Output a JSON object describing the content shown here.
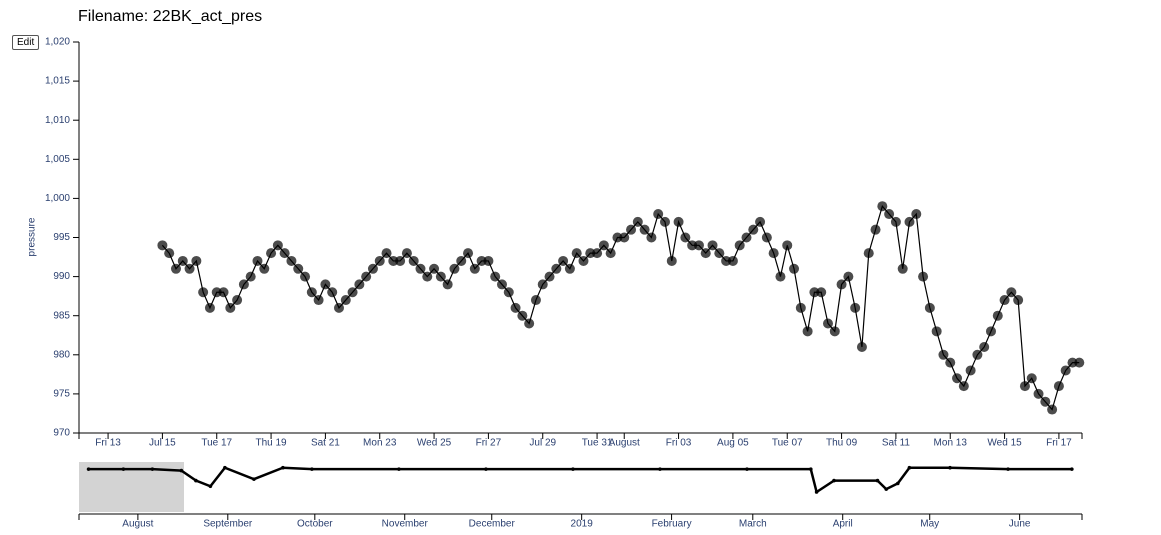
{
  "controls": {
    "edit": "Edit"
  },
  "chart_data": [
    {
      "type": "line",
      "title": "Filename: 22BK_act_pres",
      "y_label": "pressure",
      "markers": true,
      "color": "#000000",
      "xlim": [
        -1.07,
        35.85
      ],
      "ylim": [
        970,
        1020
      ],
      "xticks": [
        {
          "value": 0,
          "label": "Fri 13"
        },
        {
          "value": 2,
          "label": "Jul 15"
        },
        {
          "value": 4,
          "label": "Tue 17"
        },
        {
          "value": 6,
          "label": "Thu 19"
        },
        {
          "value": 8,
          "label": "Sat 21"
        },
        {
          "value": 10,
          "label": "Mon 23"
        },
        {
          "value": 12,
          "label": "Wed 25"
        },
        {
          "value": 14,
          "label": "Fri 27"
        },
        {
          "value": 16,
          "label": "Jul 29"
        },
        {
          "value": 18,
          "label": "Tue 31"
        },
        {
          "value": 19,
          "label": "August"
        },
        {
          "value": 21,
          "label": "Fri 03"
        },
        {
          "value": 23,
          "label": "Aug 05"
        },
        {
          "value": 25,
          "label": "Tue 07"
        },
        {
          "value": 27,
          "label": "Thu 09"
        },
        {
          "value": 29,
          "label": "Sat 11"
        },
        {
          "value": 31,
          "label": "Mon 13"
        },
        {
          "value": 33,
          "label": "Wed 15"
        },
        {
          "value": 35,
          "label": "Fri 17"
        }
      ],
      "yticks": [
        970,
        975,
        980,
        985,
        990,
        995,
        {
          "value": 1000,
          "label": "1,000"
        },
        {
          "value": 1005,
          "label": "1,005"
        },
        {
          "value": 1010,
          "label": "1,010"
        },
        {
          "value": 1015,
          "label": "1,015"
        },
        {
          "value": 1020,
          "label": "1,020"
        }
      ],
      "x": [
        2,
        2.25,
        2.5,
        2.75,
        3,
        3.25,
        3.5,
        3.75,
        4,
        4.25,
        4.5,
        4.75,
        5,
        5.25,
        5.5,
        5.75,
        6,
        6.25,
        6.5,
        6.75,
        7,
        7.25,
        7.5,
        7.75,
        8,
        8.25,
        8.5,
        8.75,
        9,
        9.25,
        9.5,
        9.75,
        10,
        10.25,
        10.5,
        10.75,
        11,
        11.25,
        11.5,
        11.75,
        12,
        12.25,
        12.5,
        12.75,
        13,
        13.25,
        13.5,
        13.75,
        14,
        14.25,
        14.5,
        14.75,
        15,
        15.25,
        15.5,
        15.75,
        16,
        16.25,
        16.5,
        16.75,
        17,
        17.25,
        17.5,
        17.75,
        18,
        18.25,
        18.5,
        18.75,
        19,
        19.25,
        19.5,
        19.75,
        20,
        20.25,
        20.5,
        20.75,
        21,
        21.25,
        21.5,
        21.75,
        22,
        22.25,
        22.5,
        22.75,
        23,
        23.25,
        23.5,
        23.75,
        24,
        24.25,
        24.5,
        24.75,
        25,
        25.25,
        25.5,
        25.75,
        26,
        26.25,
        26.5,
        26.75,
        27,
        27.25,
        27.5,
        27.75,
        28,
        28.25,
        28.5,
        28.75,
        29,
        29.25,
        29.5,
        29.75,
        30,
        30.25,
        30.5,
        30.75,
        31,
        31.25,
        31.5,
        31.75,
        32,
        32.25,
        32.5,
        32.75,
        33,
        33.25,
        33.5,
        33.75,
        34,
        34.25,
        34.5,
        34.75,
        35,
        35.25,
        35.5,
        35.75
      ],
      "values": [
        994,
        993,
        991,
        992,
        991,
        992,
        988,
        986,
        988,
        988,
        986,
        987,
        989,
        990,
        992,
        991,
        993,
        994,
        993,
        992,
        991,
        990,
        988,
        987,
        989,
        988,
        986,
        987,
        988,
        989,
        990,
        991,
        992,
        993,
        992,
        992,
        993,
        992,
        991,
        990,
        991,
        990,
        989,
        991,
        992,
        993,
        991,
        992,
        992,
        990,
        989,
        988,
        986,
        985,
        984,
        987,
        989,
        990,
        991,
        992,
        991,
        993,
        992,
        993,
        993,
        994,
        993,
        995,
        995,
        996,
        997,
        996,
        995,
        998,
        997,
        992,
        997,
        995,
        994,
        994,
        993,
        994,
        993,
        992,
        992,
        994,
        995,
        996,
        997,
        995,
        993,
        990,
        994,
        991,
        986,
        983,
        988,
        988,
        984,
        983,
        989,
        990,
        986,
        981,
        993,
        996,
        999,
        998,
        997,
        991,
        997,
        998,
        990,
        986,
        983,
        980,
        979,
        977,
        976,
        978,
        980,
        981,
        983,
        985,
        987,
        988,
        987,
        976,
        977,
        975,
        974,
        973,
        976,
        978,
        979,
        979
      ]
    },
    {
      "type": "line",
      "markers": false,
      "color": "#000000",
      "brush_color": "#d3d3d3",
      "xlim": [
        -20.3,
        325.5
      ],
      "ylim": [
        960,
        995
      ],
      "brush": [
        -20.3,
        15.9
      ],
      "xticks": [
        {
          "value": 0,
          "label": "August"
        },
        {
          "value": 31,
          "label": "September"
        },
        {
          "value": 61,
          "label": "October"
        },
        {
          "value": 92,
          "label": "November"
        },
        {
          "value": 122,
          "label": "December"
        },
        {
          "value": 153,
          "label": "2019"
        },
        {
          "value": 184,
          "label": "February"
        },
        {
          "value": 212,
          "label": "March"
        },
        {
          "value": 243,
          "label": "April"
        },
        {
          "value": 273,
          "label": "May"
        },
        {
          "value": 304,
          "label": "June"
        }
      ],
      "x": [
        -17,
        -5,
        5,
        15,
        20,
        25,
        30,
        40,
        50,
        60,
        90,
        120,
        150,
        180,
        210,
        232,
        234,
        240,
        255,
        258,
        262,
        266,
        280,
        300,
        322
      ],
      "values": [
        990,
        990,
        990,
        989,
        982,
        978,
        991,
        983,
        991,
        990,
        990,
        990,
        990,
        990,
        990,
        990,
        974,
        982,
        982,
        976,
        980,
        991,
        991,
        990,
        990
      ]
    }
  ]
}
